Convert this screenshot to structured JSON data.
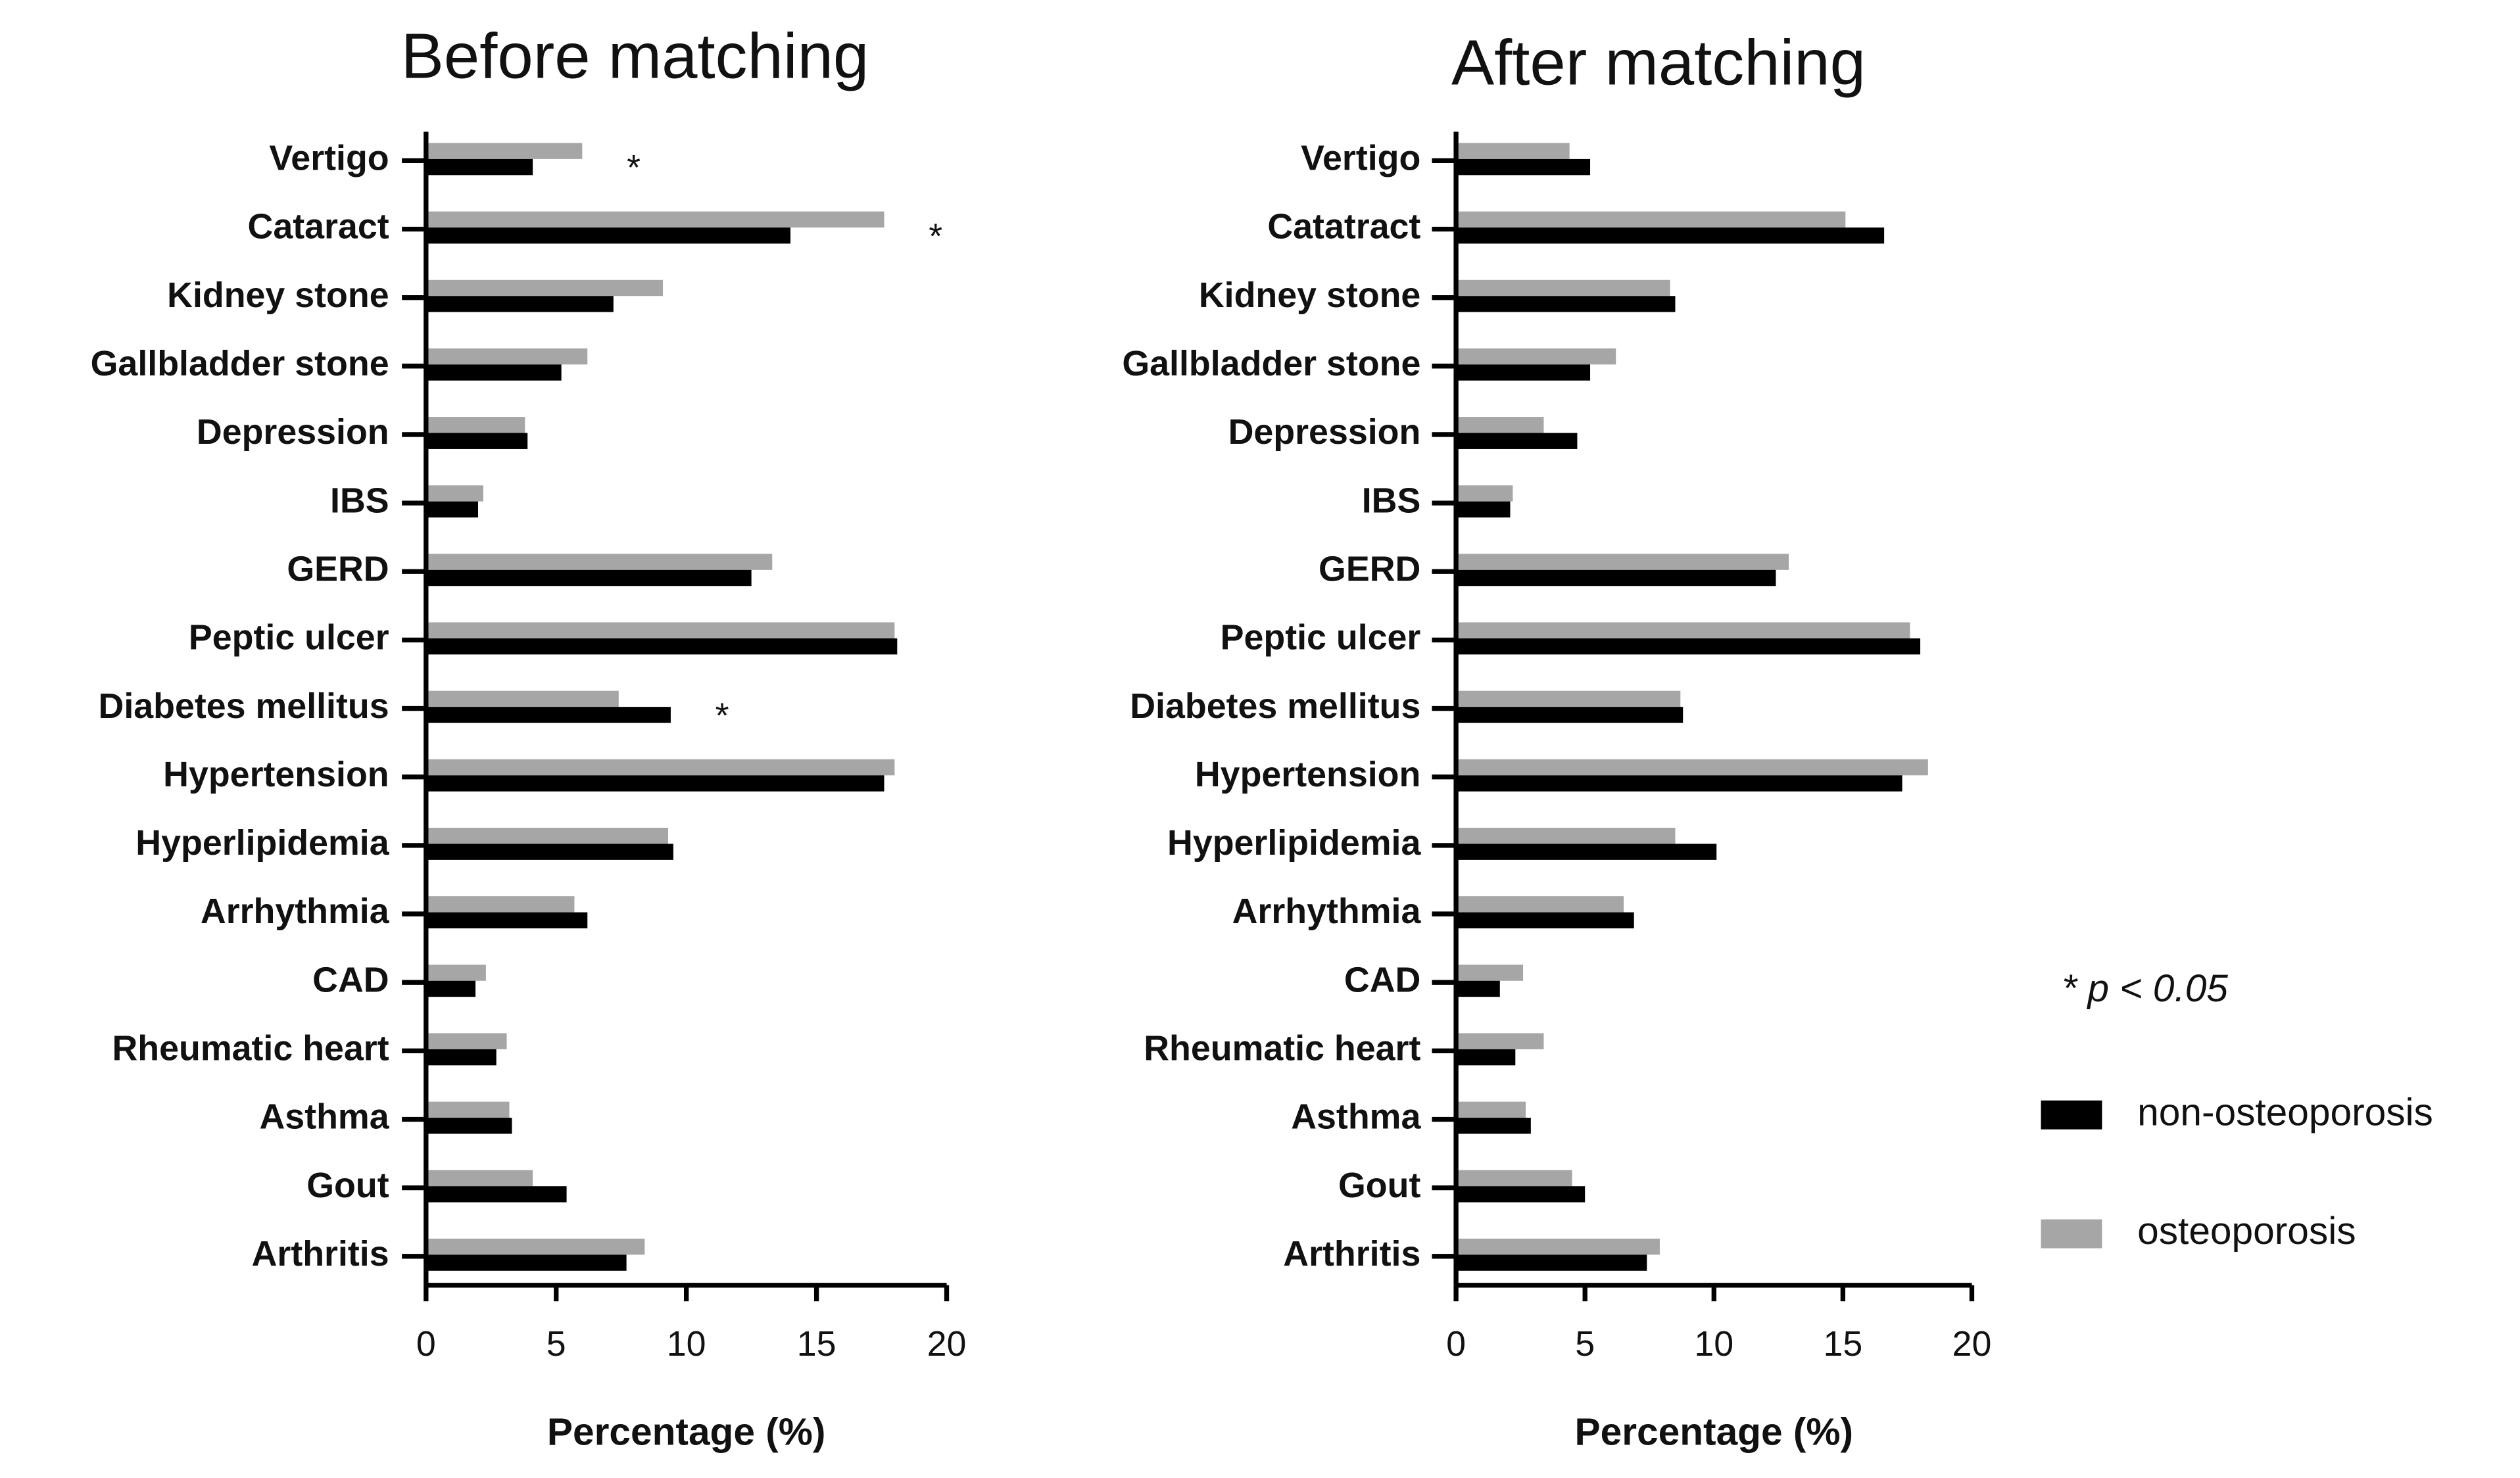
{
  "chart_data": [
    {
      "type": "hbar",
      "title": "Before matching",
      "xlabel": "Percentage (%)",
      "categories": [
        "Vertigo",
        "Cataract",
        "Kidney stone",
        "Gallbladder stone",
        "Depression",
        "IBS",
        "GERD",
        "Peptic ulcer",
        "Diabetes mellitus",
        "Hypertension",
        "Hyperlipidemia",
        "Arrhythmia",
        "CAD",
        "Rheumatic heart",
        "Asthma",
        "Gout",
        "Arthritis"
      ],
      "series": [
        {
          "color": "#a6a6a6",
          "values": [
            6.0,
            17.6,
            9.1,
            6.2,
            3.8,
            2.2,
            13.3,
            18.0,
            7.4,
            18.0,
            9.3,
            5.7,
            2.3,
            3.1,
            3.2,
            4.1,
            8.4
          ]
        },
        {
          "color": "#000000",
          "values": [
            4.1,
            14.0,
            7.2,
            5.2,
            3.9,
            2.0,
            12.5,
            18.1,
            9.4,
            17.6,
            9.5,
            6.2,
            1.9,
            2.7,
            3.3,
            5.4,
            7.7
          ]
        }
      ],
      "annotations": [
        {
          "text": "*",
          "category": "Vertigo"
        },
        {
          "text": "*",
          "category": "Cataract"
        },
        {
          "text": "*",
          "category": "Diabetes mellitus"
        }
      ],
      "xlim": [
        0,
        20
      ],
      "xticks": [
        0,
        5,
        10,
        15,
        20
      ]
    },
    {
      "type": "hbar",
      "title": "After matching",
      "xlabel": "Percentage (%)",
      "categories": [
        "Vertigo",
        "Catatract",
        "Kidney stone",
        "Gallbladder stone",
        "Depression",
        "IBS",
        "GERD",
        "Peptic ulcer",
        "Diabetes mellitus",
        "Hypertension",
        "Hyperlipidemia",
        "Arrhythmia",
        "CAD",
        "Rheumatic heart",
        "Asthma",
        "Gout",
        "Arthritis"
      ],
      "series": [
        {
          "name": "osteoporosis",
          "color": "#a6a6a6",
          "values": [
            4.4,
            15.1,
            8.3,
            6.2,
            3.4,
            2.2,
            12.9,
            17.6,
            8.7,
            18.3,
            8.5,
            6.5,
            2.6,
            3.4,
            2.7,
            4.5,
            7.9
          ]
        },
        {
          "name": "non-osteoporosis",
          "color": "#000000",
          "values": [
            5.2,
            16.6,
            8.5,
            5.2,
            4.7,
            2.1,
            12.4,
            18.0,
            8.8,
            17.3,
            10.1,
            6.9,
            1.7,
            2.3,
            2.9,
            5.0,
            7.4
          ]
        }
      ],
      "note": "* p < 0.05",
      "xlim": [
        0,
        20
      ],
      "xticks": [
        0,
        5,
        10,
        15,
        20
      ]
    }
  ]
}
